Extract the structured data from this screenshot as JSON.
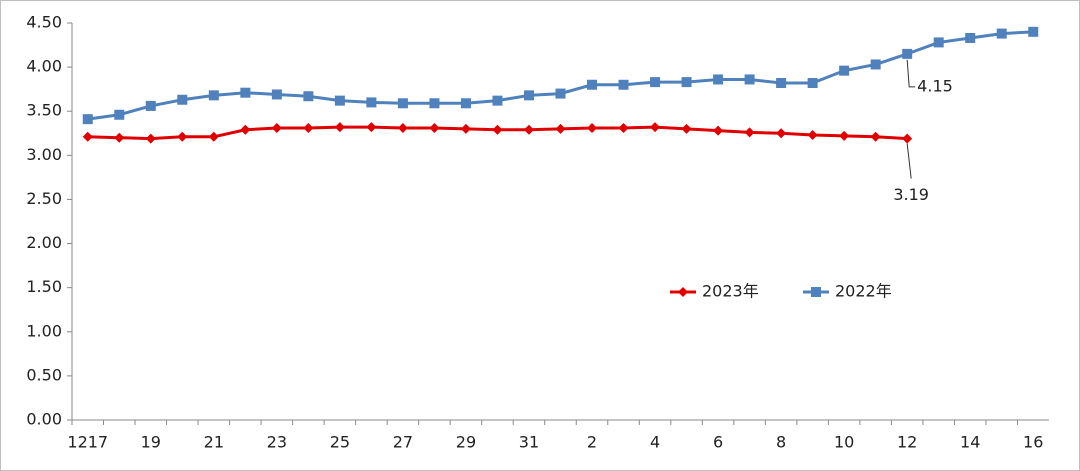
{
  "chart_data": {
    "type": "line",
    "categories": [
      "1217",
      null,
      "19",
      null,
      "21",
      null,
      "23",
      null,
      "25",
      null,
      "27",
      null,
      "29",
      null,
      "31",
      null,
      "2",
      null,
      "4",
      null,
      "6",
      null,
      "8",
      null,
      "10",
      null,
      "12",
      null,
      "14",
      null,
      "16"
    ],
    "series": [
      {
        "name": "2023年",
        "color": "#e00000",
        "marker": "diamond",
        "values": [
          3.21,
          3.2,
          3.19,
          3.21,
          3.21,
          3.29,
          3.31,
          3.31,
          3.32,
          3.32,
          3.31,
          3.31,
          3.3,
          3.29,
          3.29,
          3.3,
          3.31,
          3.31,
          3.32,
          3.3,
          3.28,
          3.26,
          3.25,
          3.23,
          3.22,
          3.21,
          3.19,
          null,
          null,
          null,
          null
        ]
      },
      {
        "name": "2022年",
        "color": "#4f81bd",
        "marker": "square",
        "values": [
          3.41,
          3.46,
          3.56,
          3.63,
          3.68,
          3.71,
          3.69,
          3.67,
          3.62,
          3.6,
          3.59,
          3.59,
          3.59,
          3.62,
          3.68,
          3.7,
          3.8,
          3.8,
          3.83,
          3.83,
          3.86,
          3.86,
          3.82,
          3.82,
          3.96,
          4.03,
          4.15,
          4.28,
          4.33,
          4.38,
          4.4
        ]
      }
    ],
    "annotations": [
      {
        "series": 0,
        "index": 26
      },
      {
        "series": 1,
        "index": 26
      }
    ],
    "ylim": [
      0,
      4.5
    ],
    "yticks": [
      {
        "value": 0,
        "label": "0.00"
      },
      {
        "value": 0.5,
        "label": "0.50"
      },
      {
        "value": 1,
        "label": "1.00"
      },
      {
        "value": 1.5,
        "label": "1.50"
      },
      {
        "value": 2,
        "label": "2.00"
      },
      {
        "value": 2.5,
        "label": "2.50"
      },
      {
        "value": 3,
        "label": "3.00"
      },
      {
        "value": 3.5,
        "label": "3.50"
      },
      {
        "value": 4,
        "label": "4.00"
      },
      {
        "value": 4.5,
        "label": "4.50"
      }
    ],
    "grid": false,
    "legend": "center"
  }
}
